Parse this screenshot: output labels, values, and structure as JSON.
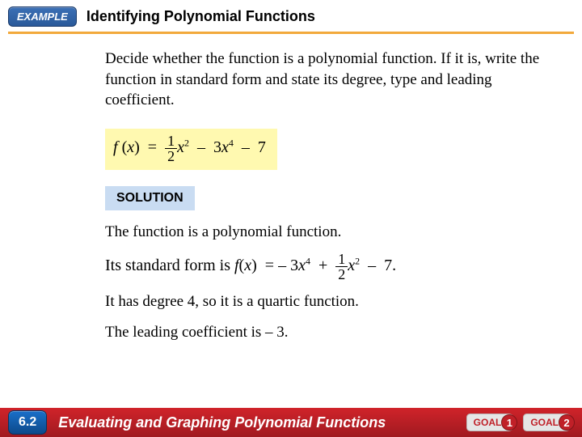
{
  "header": {
    "badge": "EXAMPLE",
    "title": "Identifying Polynomial Functions"
  },
  "instruction": "Decide whether the function is a polynomial function. If it is, write the function in standard form and state its degree, type and leading coefficient.",
  "equation": {
    "lhs": "f",
    "paren_var": "x",
    "eq": "=",
    "frac_num": "1",
    "frac_den": "2",
    "t1_var": "x",
    "t1_exp": "2",
    "minus1": "–",
    "t2_coef": "3",
    "t2_var": "x",
    "t2_exp": "4",
    "minus2": "–",
    "t3": "7"
  },
  "solution_label": "SOLUTION",
  "sol1": "The function is a polynomial function.",
  "sol2_pre": "Its standard form is  ",
  "std": {
    "lhs": "f",
    "paren_var": "x",
    "eq": "=",
    "neg": "–",
    "t1_coef": "3",
    "t1_var": "x",
    "t1_exp": "4",
    "plus": "+",
    "frac_num": "1",
    "frac_den": "2",
    "t2_var": "x",
    "t2_exp": "2",
    "minus": "–",
    "t3": "7."
  },
  "sol3": "It has degree 4, so it is a quartic function.",
  "sol4": "The leading coefficient is  – 3.",
  "footer": {
    "chapter": "6.2",
    "title": "Evaluating and Graphing Polynomial Functions",
    "goal1_label": "GOAL",
    "goal1_num": "1",
    "goal2_label": "GOAL",
    "goal2_num": "2"
  },
  "colors": {
    "rule": "#f2a93b",
    "highlight": "#fff9b0",
    "solution_bg": "#c9dcf2",
    "footer_bg": "#c02028",
    "badge_bg": "#2a5a9a"
  }
}
